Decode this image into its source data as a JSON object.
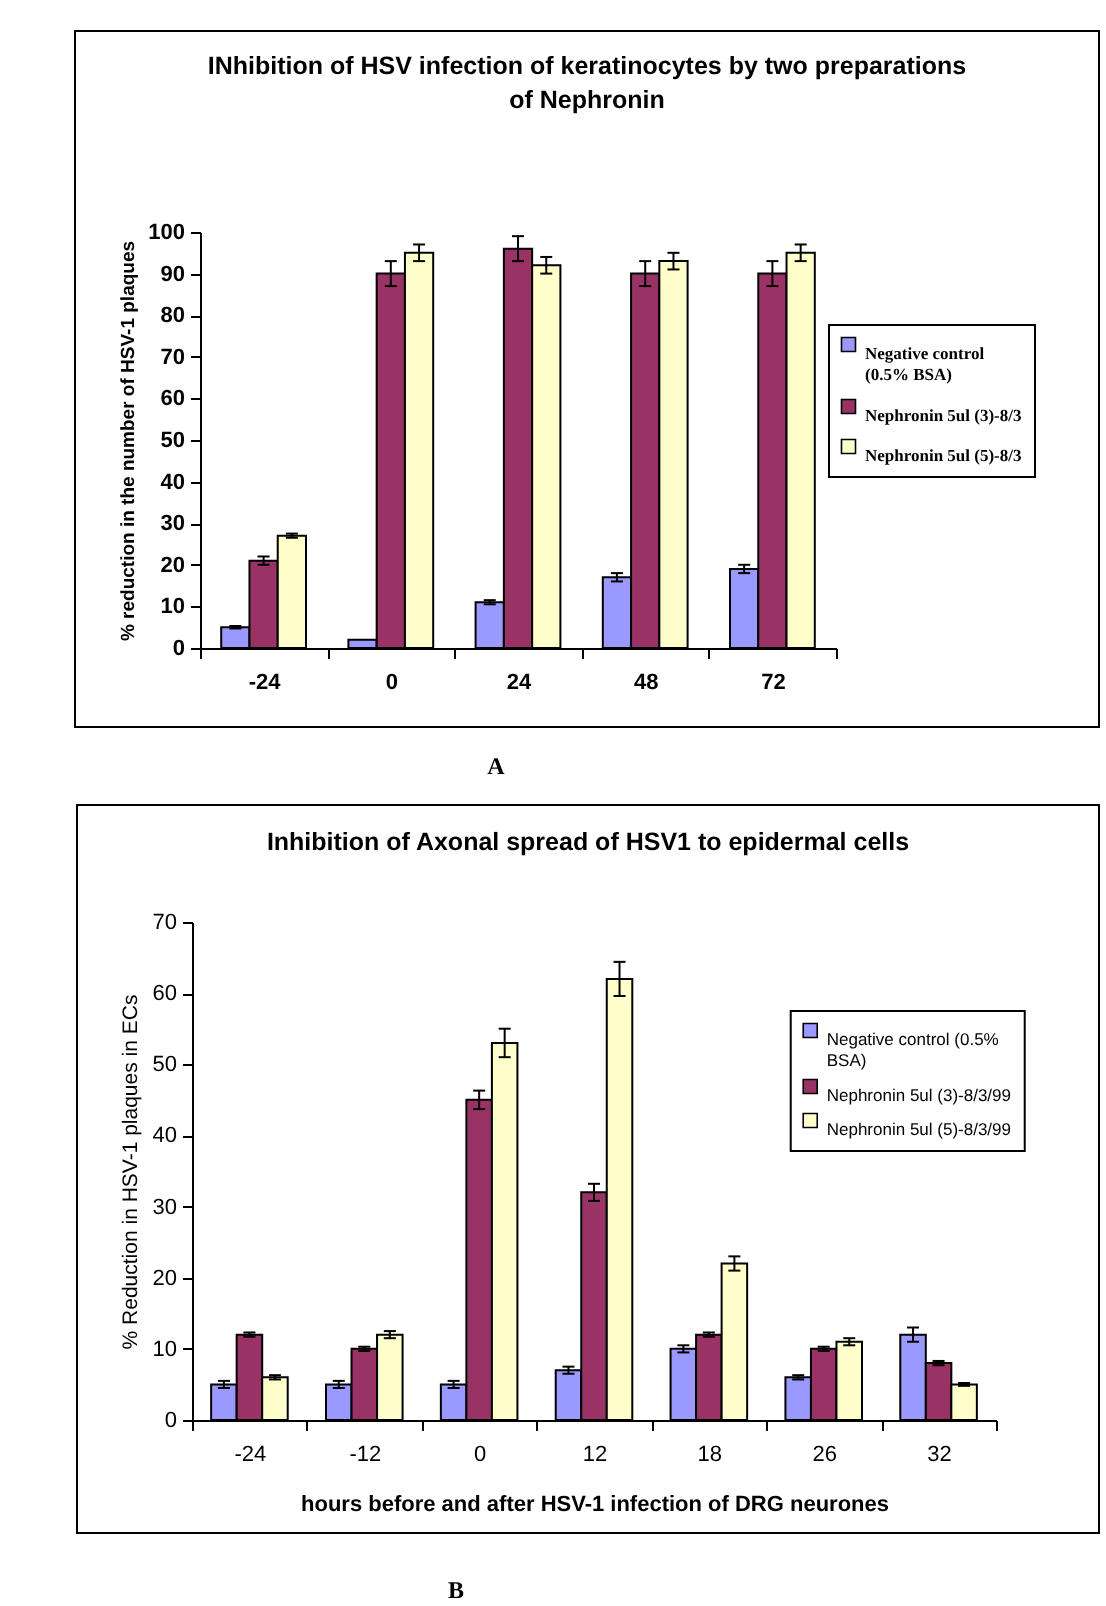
{
  "chart_data": [
    {
      "type": "bar",
      "title": "INhibition of HSV infection of keratinocytes by two preparations of Nephronin",
      "ylabel": "% reduction in the number of HSV-1 plaques",
      "categories": [
        "-24",
        "0",
        "24",
        "48",
        "72"
      ],
      "series": [
        {
          "name": "Negative control (0.5% BSA)",
          "color": "#9999ff",
          "values": [
            5,
            2,
            11,
            17,
            19
          ],
          "errors": [
            0.3,
            null,
            0.5,
            1,
            1
          ]
        },
        {
          "name": "Nephronin 5ul (3)-8/3",
          "color": "#993366",
          "values": [
            21,
            90,
            96,
            90,
            90
          ],
          "errors": [
            1,
            3,
            3,
            3,
            3
          ]
        },
        {
          "name": "Nephronin 5ul (5)-8/3",
          "color": "#ffffcc",
          "values": [
            27,
            95,
            92,
            93,
            95
          ],
          "errors": [
            0.5,
            2,
            2,
            2,
            2
          ]
        }
      ],
      "ylim": [
        0,
        100
      ],
      "yticks": [
        0,
        10,
        20,
        30,
        40,
        50,
        60,
        70,
        80,
        90,
        100
      ],
      "legend": "right",
      "annotations": [
        "A"
      ]
    },
    {
      "type": "bar",
      "title": "Inhibition of Axonal spread of HSV1 to epidermal cells",
      "xlabel": "hours before and after HSV-1 infection of DRG neurones",
      "ylabel": "% Reduction in HSV-1 plaques in ECs",
      "categories": [
        "-24",
        "-12",
        "0",
        "12",
        "18",
        "26",
        "32"
      ],
      "series": [
        {
          "name": "Negative control (0.5% BSA)",
          "color": "#9999ff",
          "values": [
            5,
            5,
            5,
            7,
            10,
            6,
            12
          ],
          "errors": [
            0.5,
            0.5,
            0.5,
            0.5,
            0.5,
            0.3,
            1
          ]
        },
        {
          "name": "Nephronin 5ul (3)-8/3/99",
          "color": "#993366",
          "values": [
            12,
            10,
            45,
            32,
            12,
            10,
            8
          ],
          "errors": [
            0.3,
            0.3,
            1.3,
            1.2,
            0.3,
            0.3,
            0.3
          ]
        },
        {
          "name": "Nephronin 5ul (5)-8/3/99",
          "color": "#ffffcc",
          "values": [
            6,
            12,
            53,
            62,
            22,
            11,
            5
          ],
          "errors": [
            0.3,
            0.5,
            2,
            2.4,
            1,
            0.5,
            0.2
          ]
        }
      ],
      "ylim": [
        0,
        70
      ],
      "yticks": [
        0,
        10,
        20,
        30,
        40,
        50,
        60,
        70
      ],
      "legend": "top right",
      "annotations": [
        "B"
      ]
    }
  ]
}
